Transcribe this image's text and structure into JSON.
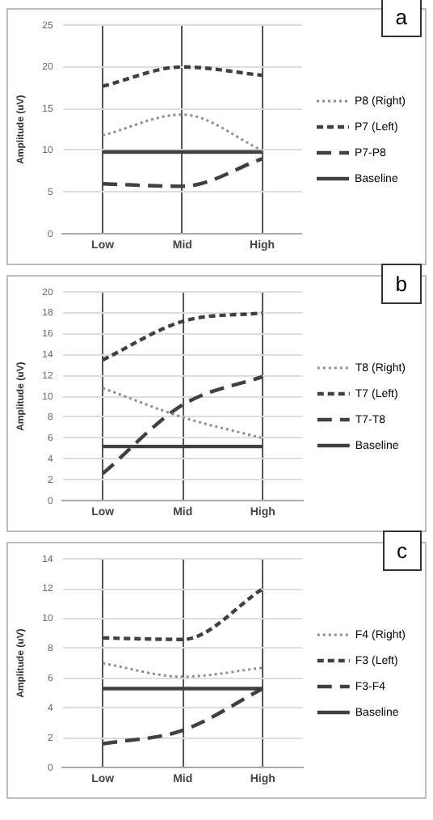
{
  "chart_data": [
    {
      "type": "line",
      "categories": [
        "Low",
        "Mid",
        "High"
      ],
      "ylabel": "Amplitude (uV)",
      "ylim": [
        0,
        25
      ],
      "yticks": [
        0,
        5,
        10,
        15,
        20,
        25
      ],
      "grid": true,
      "legend": "right",
      "marker": "none",
      "annotations": [
        "a"
      ],
      "series": [
        {
          "name": "P8 (Right)",
          "color": "#8c8c8c",
          "line_style": "dotted",
          "values": [
            11.8,
            14.3,
            10
          ]
        },
        {
          "name": "P7 (Left)",
          "color": "#404040",
          "line_style": "dashed",
          "values": [
            17.7,
            20,
            19
          ]
        },
        {
          "name": "P7-P8",
          "color": "#404040",
          "line_style": "dashed",
          "values": [
            6,
            5.7,
            9
          ]
        },
        {
          "name": "Baseline",
          "color": "#404040",
          "line_style": "solid",
          "values": [
            9.8,
            9.8,
            9.8
          ]
        }
      ]
    },
    {
      "type": "line",
      "categories": [
        "Low",
        "Mid",
        "High"
      ],
      "ylabel": "Amplitude (uV)",
      "ylim": [
        0,
        20
      ],
      "yticks": [
        0,
        2,
        4,
        6,
        8,
        10,
        12,
        14,
        16,
        18,
        20
      ],
      "grid": true,
      "legend": "right",
      "marker": "none",
      "annotations": [
        "b"
      ],
      "series": [
        {
          "name": "T8 (Right)",
          "color": "#8c8c8c",
          "line_style": "dotted",
          "values": [
            10.8,
            8,
            6
          ]
        },
        {
          "name": "T7 (Left)",
          "color": "#404040",
          "line_style": "dashed",
          "values": [
            13.5,
            17.2,
            18
          ]
        },
        {
          "name": "T7-T8",
          "color": "#404040",
          "line_style": "dashed",
          "values": [
            2.6,
            9.2,
            11.9
          ]
        },
        {
          "name": "Baseline",
          "color": "#404040",
          "line_style": "solid",
          "values": [
            5.2,
            5.2,
            5.2
          ]
        }
      ]
    },
    {
      "type": "line",
      "categories": [
        "Low",
        "Mid",
        "High"
      ],
      "ylabel": "Amplitude (uV)",
      "ylim": [
        0,
        14
      ],
      "yticks": [
        0,
        2,
        4,
        6,
        8,
        10,
        12,
        14
      ],
      "grid": true,
      "legend": "right",
      "marker": "none",
      "annotations": [
        "c"
      ],
      "series": [
        {
          "name": "F4 (Right)",
          "color": "#8c8c8c",
          "line_style": "dotted",
          "values": [
            7,
            6.1,
            6.7
          ]
        },
        {
          "name": "F3 (Left)",
          "color": "#404040",
          "line_style": "dashed",
          "values": [
            8.7,
            8.6,
            12
          ]
        },
        {
          "name": "F3-F4",
          "color": "#404040",
          "line_style": "dashed",
          "values": [
            1.6,
            2.5,
            5.3
          ]
        },
        {
          "name": "Baseline",
          "color": "#404040",
          "line_style": "solid",
          "values": [
            5.3,
            5.3,
            5.3
          ]
        }
      ]
    }
  ]
}
